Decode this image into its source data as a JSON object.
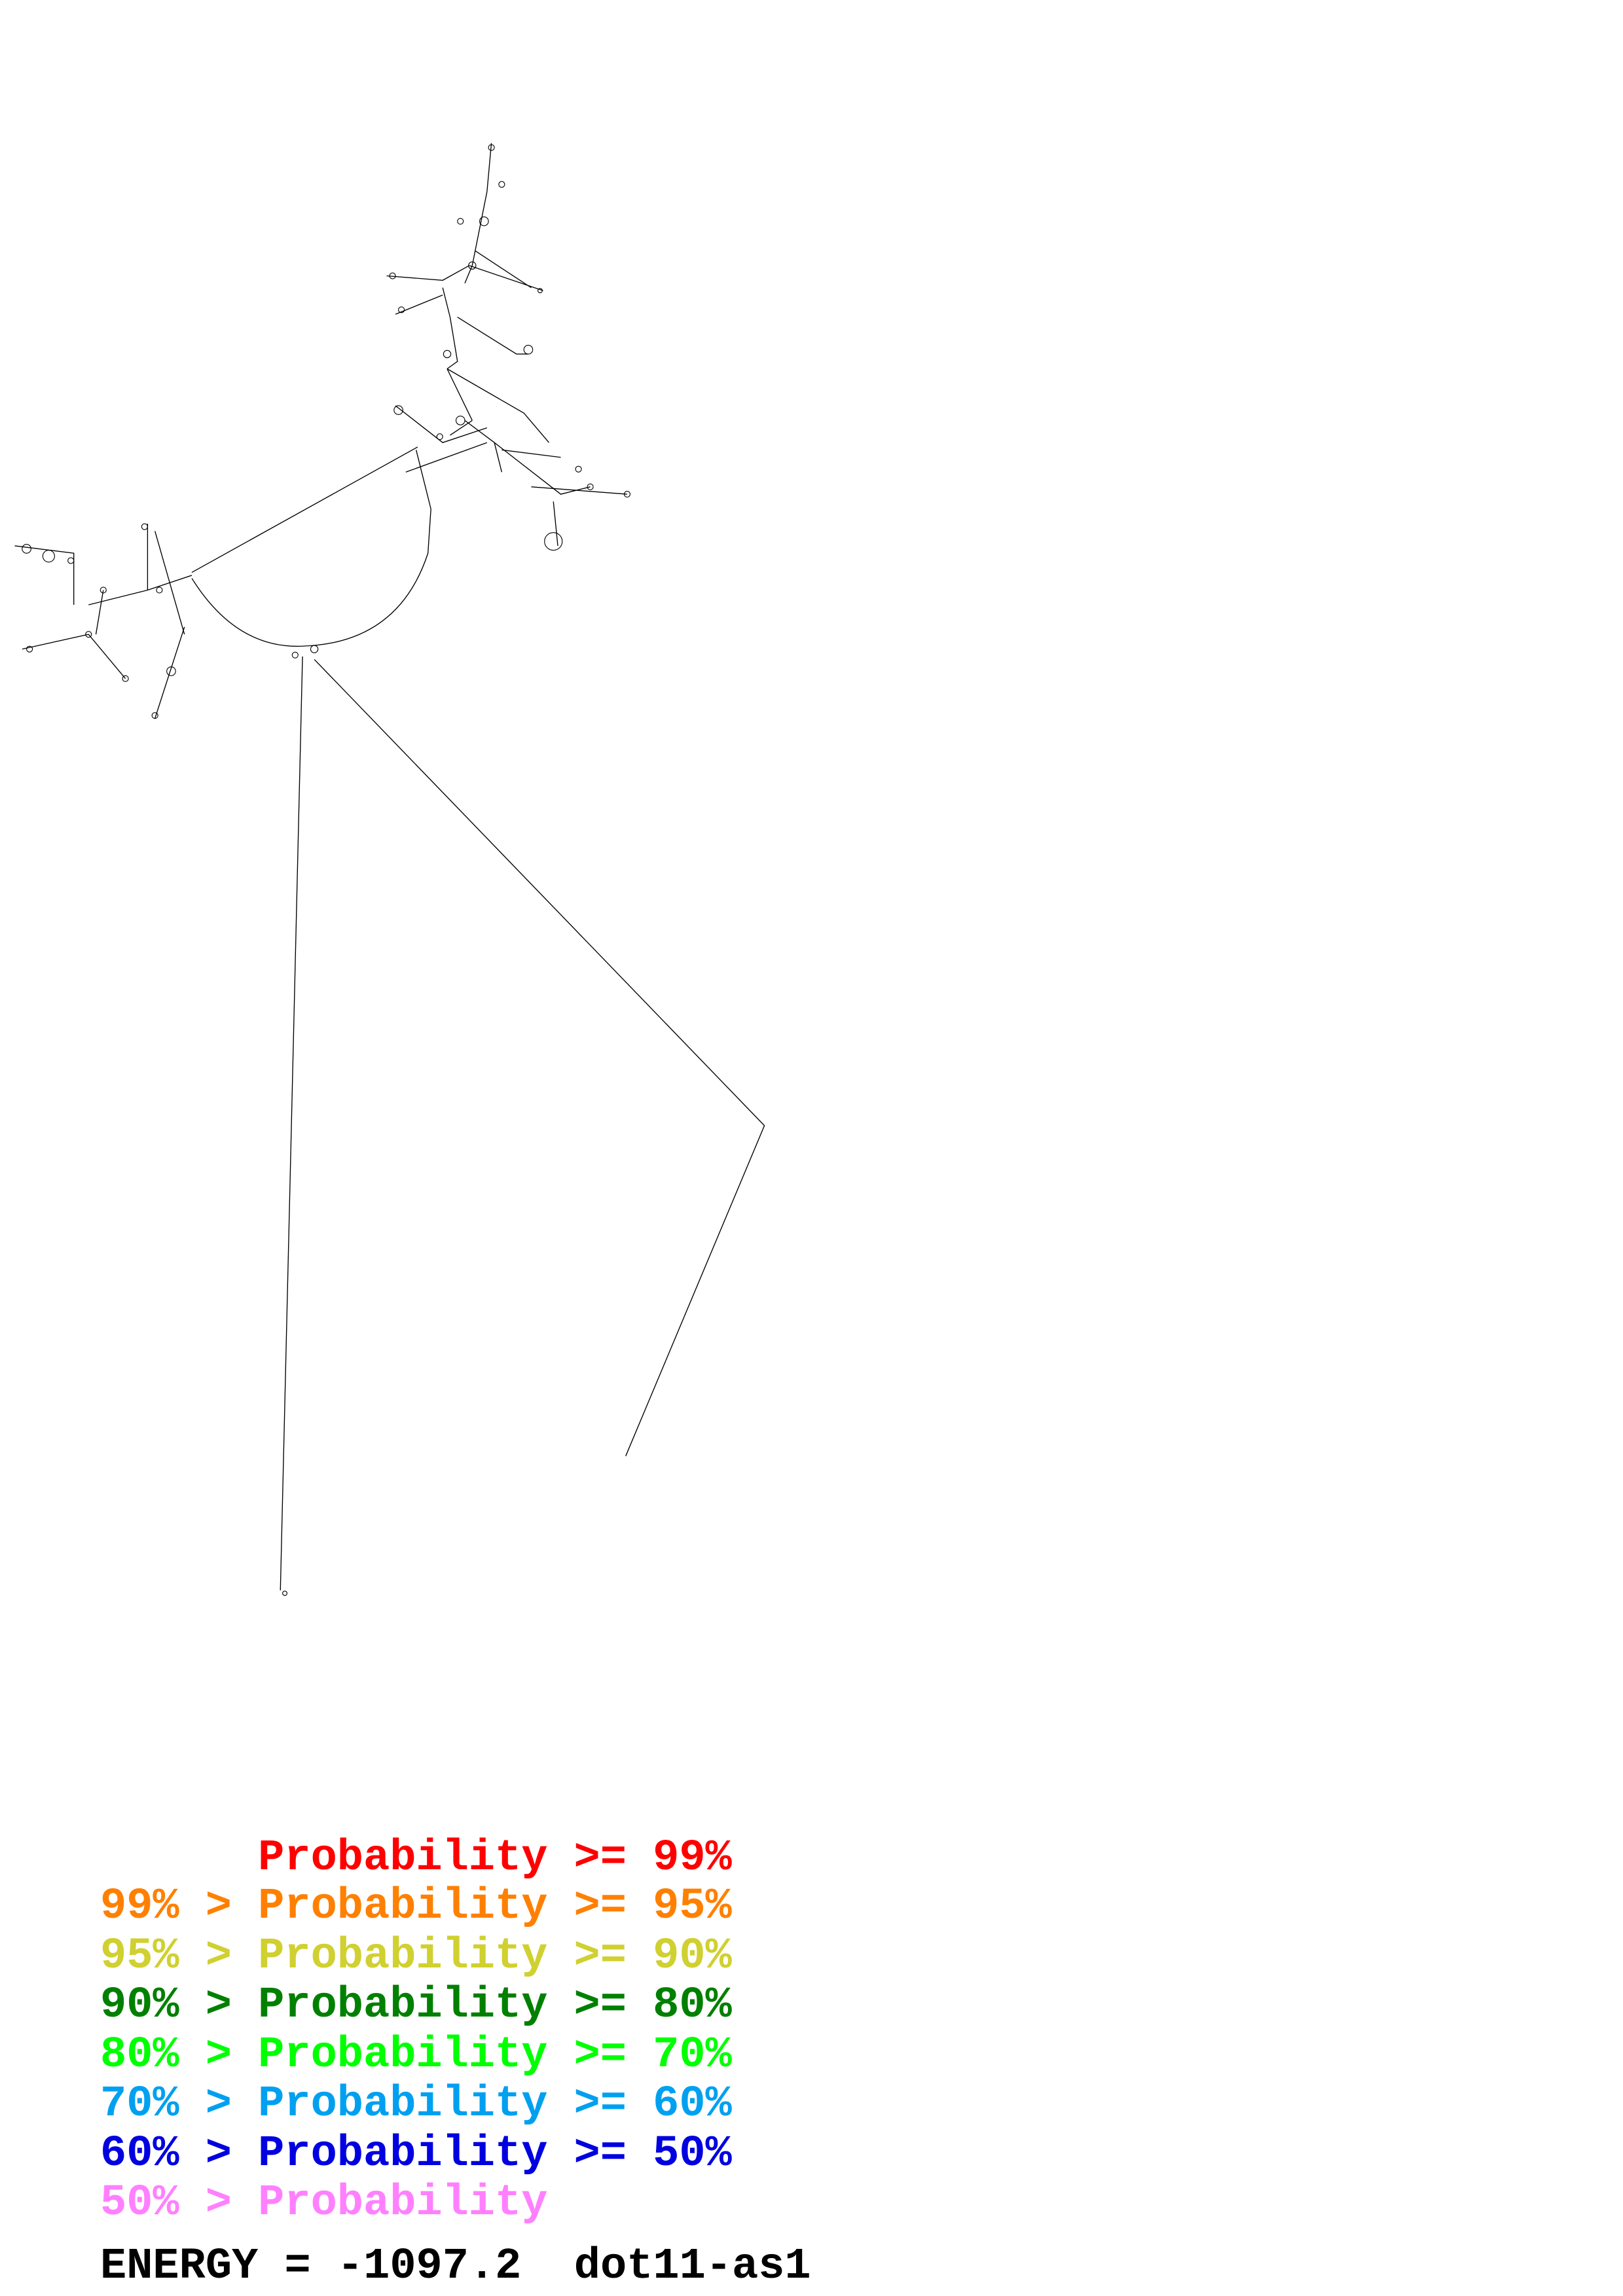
{
  "diagram": {
    "type": "RNA secondary structure",
    "backbone_color": "#000000"
  },
  "legend": [
    {
      "lower": "",
      "gt": "",
      "label": "Probability",
      "ge": ">=",
      "upper": "99%",
      "color": "#ff0000"
    },
    {
      "lower": "99%",
      "gt": ">",
      "label": "Probability",
      "ge": ">=",
      "upper": "95%",
      "color": "#ff8000"
    },
    {
      "lower": "95%",
      "gt": ">",
      "label": "Probability",
      "ge": ">=",
      "upper": "90%",
      "color": "#d0d030"
    },
    {
      "lower": "90%",
      "gt": ">",
      "label": "Probability",
      "ge": ">=",
      "upper": "80%",
      "color": "#008000"
    },
    {
      "lower": "80%",
      "gt": ">",
      "label": "Probability",
      "ge": ">=",
      "upper": "70%",
      "color": "#00ff00"
    },
    {
      "lower": "70%",
      "gt": ">",
      "label": "Probability",
      "ge": ">=",
      "upper": "60%",
      "color": "#00a0f0"
    },
    {
      "lower": "60%",
      "gt": ">",
      "label": "Probability",
      "ge": ">=",
      "upper": "50%",
      "color": "#0000e0"
    },
    {
      "lower": "50%",
      "gt": ">",
      "label": "Probability",
      "ge": "",
      "upper": "",
      "color": "#ff80ff"
    }
  ],
  "footer": {
    "energy_label": "ENERGY",
    "equals": "=",
    "energy_value": "-1097.2",
    "sequence_name": "dot11-as1"
  }
}
